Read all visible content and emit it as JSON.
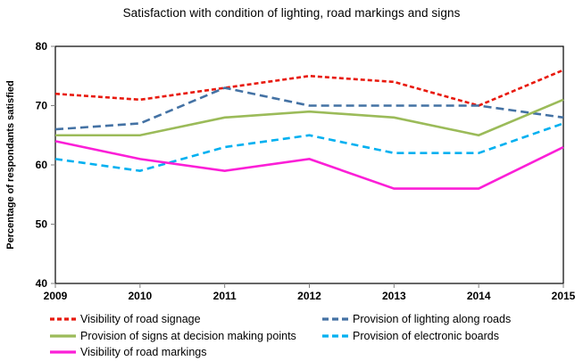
{
  "title": "Satisfaction with condition of lighting, road markings and signs",
  "chart_data": {
    "type": "line",
    "x": [
      "2009",
      "2010",
      "2011",
      "2012",
      "2013",
      "2014",
      "2015"
    ],
    "series": [
      {
        "name": "Visibility of road signage",
        "values": [
          72,
          71,
          73,
          75,
          74,
          70,
          76
        ],
        "color": "#e8190d",
        "dash": "5,3",
        "width": 2.6
      },
      {
        "name": "Provision of lighting along roads",
        "values": [
          66,
          67,
          73,
          70,
          70,
          70,
          68
        ],
        "color": "#4472a4",
        "dash": "9,5",
        "width": 2.6
      },
      {
        "name": "Provision of signs at decision making points",
        "values": [
          65,
          65,
          68,
          69,
          68,
          65,
          71
        ],
        "color": "#9bbb59",
        "dash": "",
        "width": 2.6
      },
      {
        "name": "Provision of electronic boards",
        "values": [
          61,
          59,
          63,
          65,
          62,
          62,
          67
        ],
        "color": "#00b0f0",
        "dash": "8,5",
        "width": 2.6
      },
      {
        "name": "Visibility of road markings",
        "values": [
          64,
          61,
          59,
          61,
          56,
          56,
          63
        ],
        "color": "#fb1fd7",
        "dash": "",
        "width": 2.6
      }
    ],
    "title": "Satisfaction with condition of lighting, road markings and signs",
    "xlabel": "",
    "ylabel": "Percentage of respondants satisfied",
    "ylim": [
      40,
      80
    ],
    "yticks": [
      40,
      50,
      60,
      70,
      80
    ],
    "grid": false,
    "legend_position": "bottom"
  }
}
